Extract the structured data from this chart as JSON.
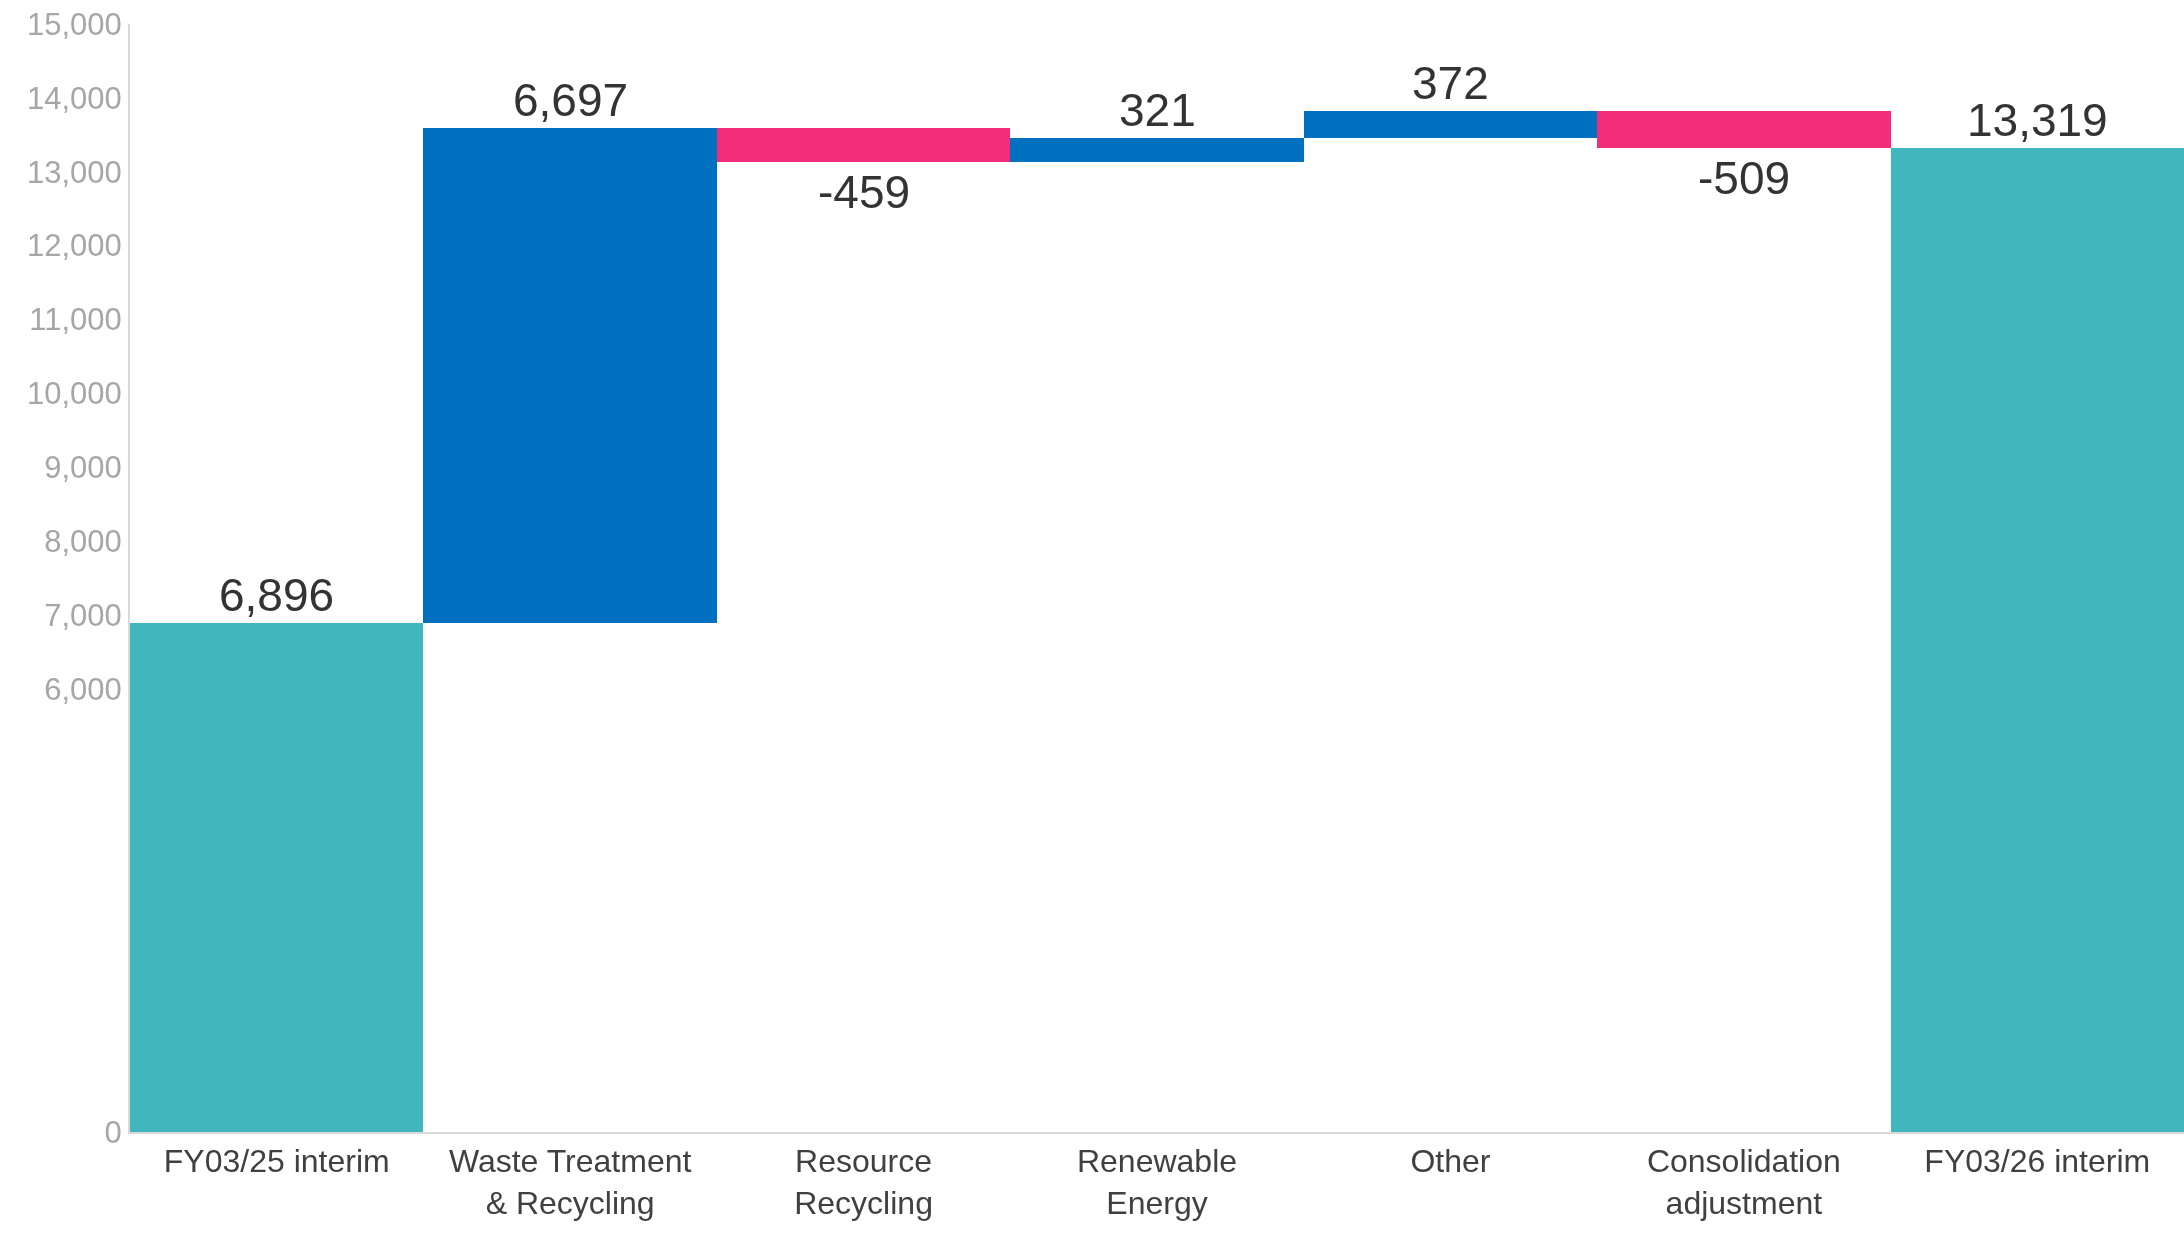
{
  "chart_data": {
    "type": "bar",
    "categories": [
      "FY03/25 interim",
      "Waste Treatment & Recycling",
      "Resource Recycling",
      "Renewable Energy",
      "Other",
      "Consolidation adjustment",
      "FY03/26 interim"
    ],
    "values": [
      6896,
      6697,
      -459,
      321,
      372,
      -509,
      13319
    ],
    "base": [
      0,
      6896,
      13593,
      13134,
      13455,
      13827,
      0
    ],
    "colors": [
      "#41b6bd",
      "#0070c0",
      "#f22e7c",
      "#0070c0",
      "#0070c0",
      "#f22e7c",
      "#41b6bd"
    ],
    "value_labels": [
      "6,896",
      "6,697",
      "-459",
      "321",
      "372",
      "-509",
      "13,319"
    ],
    "ylim": [
      0,
      15000
    ],
    "yticks": [
      0,
      {
        "value": 6000,
        "label": "6,000"
      },
      {
        "value": 7000,
        "label": "7,000"
      },
      {
        "value": 8000,
        "label": "8,000"
      },
      {
        "value": 9000,
        "label": "9,000"
      },
      {
        "value": 10000,
        "label": "10,000"
      },
      {
        "value": 11000,
        "label": "11,000"
      },
      {
        "value": 12000,
        "label": "12,000"
      },
      {
        "value": 13000,
        "label": "13,000"
      },
      {
        "value": 14000,
        "label": "14,000"
      },
      {
        "value": 15000,
        "label": "15,000"
      }
    ]
  }
}
